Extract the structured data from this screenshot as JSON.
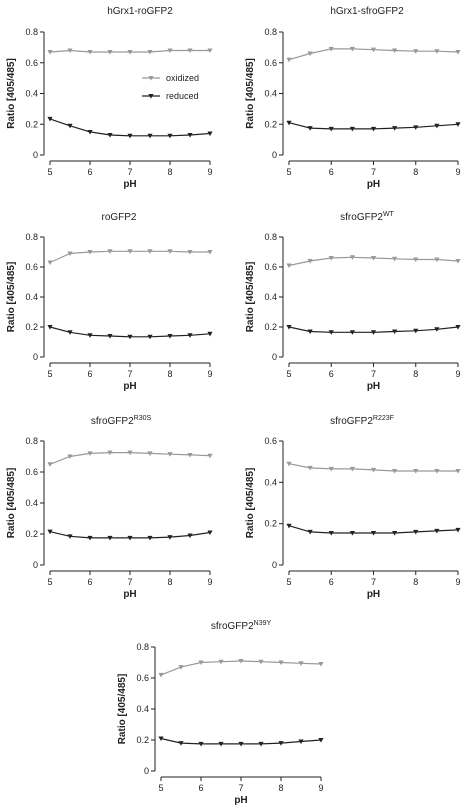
{
  "chart_data": [
    {
      "type": "line",
      "title": "hGrx1-roGFP2",
      "title_sup": "",
      "xlabel": "pH",
      "ylabel": "Ratio [405/485]",
      "xlim": [
        5,
        9
      ],
      "ylim": [
        0,
        0.8
      ],
      "xticks": [
        5,
        6,
        7,
        8,
        9
      ],
      "yticks": [
        0,
        0.2,
        0.4,
        0.6,
        0.8
      ],
      "x": [
        5,
        5.5,
        6,
        6.5,
        7,
        7.5,
        8,
        8.5,
        9
      ],
      "series": [
        {
          "name": "oxidized",
          "color": "#999999",
          "marker": "triangle-down",
          "values": [
            0.67,
            0.68,
            0.67,
            0.67,
            0.67,
            0.67,
            0.68,
            0.68,
            0.68
          ]
        },
        {
          "name": "reduced",
          "color": "#222222",
          "marker": "triangle-down",
          "values": [
            0.235,
            0.19,
            0.15,
            0.13,
            0.125,
            0.125,
            0.125,
            0.13,
            0.14
          ]
        }
      ],
      "legend": {
        "show": true,
        "placement": "center-right"
      }
    },
    {
      "type": "line",
      "title": "hGrx1-sfroGFP2",
      "title_sup": "",
      "xlabel": "pH",
      "ylabel": "Ratio [405/485]",
      "xlim": [
        5,
        9
      ],
      "ylim": [
        0,
        0.8
      ],
      "xticks": [
        5,
        6,
        7,
        8,
        9
      ],
      "yticks": [
        0,
        0.2,
        0.4,
        0.6,
        0.8
      ],
      "x": [
        5,
        5.5,
        6,
        6.5,
        7,
        7.5,
        8,
        8.5,
        9
      ],
      "series": [
        {
          "name": "oxidized",
          "color": "#999999",
          "marker": "triangle-down",
          "values": [
            0.62,
            0.66,
            0.69,
            0.69,
            0.685,
            0.68,
            0.675,
            0.675,
            0.67
          ]
        },
        {
          "name": "reduced",
          "color": "#222222",
          "marker": "triangle-down",
          "values": [
            0.21,
            0.175,
            0.17,
            0.17,
            0.17,
            0.175,
            0.18,
            0.19,
            0.2
          ]
        }
      ],
      "legend": {
        "show": false
      }
    },
    {
      "type": "line",
      "title": "roGFP2",
      "title_sup": "",
      "xlabel": "pH",
      "ylabel": "Ratio [405/485]",
      "xlim": [
        5,
        9
      ],
      "ylim": [
        0,
        0.8
      ],
      "xticks": [
        5,
        6,
        7,
        8,
        9
      ],
      "yticks": [
        0,
        0.2,
        0.4,
        0.6,
        0.8
      ],
      "x": [
        5,
        5.5,
        6,
        6.5,
        7,
        7.5,
        8,
        8.5,
        9
      ],
      "series": [
        {
          "name": "oxidized",
          "color": "#999999",
          "marker": "triangle-down",
          "values": [
            0.63,
            0.69,
            0.7,
            0.705,
            0.705,
            0.705,
            0.705,
            0.7,
            0.7
          ]
        },
        {
          "name": "reduced",
          "color": "#222222",
          "marker": "triangle-down",
          "values": [
            0.2,
            0.165,
            0.145,
            0.14,
            0.135,
            0.135,
            0.14,
            0.145,
            0.155
          ]
        }
      ],
      "legend": {
        "show": false
      }
    },
    {
      "type": "line",
      "title": "sfroGFP2",
      "title_sup": "WT",
      "xlabel": "pH",
      "ylabel": "Ratio [405/485]",
      "xlim": [
        5,
        9
      ],
      "ylim": [
        0,
        0.8
      ],
      "xticks": [
        5,
        6,
        7,
        8,
        9
      ],
      "yticks": [
        0,
        0.2,
        0.4,
        0.6,
        0.8
      ],
      "x": [
        5,
        5.5,
        6,
        6.5,
        7,
        7.5,
        8,
        8.5,
        9
      ],
      "series": [
        {
          "name": "oxidized",
          "color": "#999999",
          "marker": "triangle-down",
          "values": [
            0.61,
            0.64,
            0.66,
            0.665,
            0.66,
            0.655,
            0.65,
            0.65,
            0.64
          ]
        },
        {
          "name": "reduced",
          "color": "#222222",
          "marker": "triangle-down",
          "values": [
            0.2,
            0.17,
            0.165,
            0.165,
            0.165,
            0.17,
            0.175,
            0.185,
            0.2
          ]
        }
      ],
      "legend": {
        "show": false
      }
    },
    {
      "type": "line",
      "title": "sfroGFP2",
      "title_sup": "R30S",
      "xlabel": "pH",
      "ylabel": "Ratio [405/485]",
      "xlim": [
        5,
        9
      ],
      "ylim": [
        0,
        0.8
      ],
      "xticks": [
        5,
        6,
        7,
        8,
        9
      ],
      "yticks": [
        0,
        0.2,
        0.4,
        0.6,
        0.8
      ],
      "x": [
        5,
        5.5,
        6,
        6.5,
        7,
        7.5,
        8,
        8.5,
        9
      ],
      "series": [
        {
          "name": "oxidized",
          "color": "#999999",
          "marker": "triangle-down",
          "values": [
            0.65,
            0.7,
            0.72,
            0.725,
            0.725,
            0.72,
            0.715,
            0.71,
            0.705
          ]
        },
        {
          "name": "reduced",
          "color": "#222222",
          "marker": "triangle-down",
          "values": [
            0.215,
            0.185,
            0.175,
            0.175,
            0.175,
            0.175,
            0.18,
            0.19,
            0.21
          ]
        }
      ],
      "legend": {
        "show": false
      }
    },
    {
      "type": "line",
      "title": "sfroGFP2",
      "title_sup": "R223F",
      "xlabel": "pH",
      "ylabel": "Ratio [405/485]",
      "xlim": [
        5,
        9
      ],
      "ylim": [
        0,
        0.6
      ],
      "xticks": [
        5,
        6,
        7,
        8,
        9
      ],
      "yticks": [
        0,
        0.2,
        0.4,
        0.6
      ],
      "x": [
        5,
        5.5,
        6,
        6.5,
        7,
        7.5,
        8,
        8.5,
        9
      ],
      "series": [
        {
          "name": "oxidized",
          "color": "#999999",
          "marker": "triangle-down",
          "values": [
            0.49,
            0.47,
            0.465,
            0.465,
            0.46,
            0.455,
            0.455,
            0.455,
            0.455
          ]
        },
        {
          "name": "reduced",
          "color": "#222222",
          "marker": "triangle-down",
          "values": [
            0.19,
            0.16,
            0.155,
            0.155,
            0.155,
            0.155,
            0.16,
            0.165,
            0.17
          ]
        }
      ],
      "legend": {
        "show": false
      }
    },
    {
      "type": "line",
      "title": "sfroGFP2",
      "title_sup": "N39Y",
      "xlabel": "pH",
      "ylabel": "Ratio [405/485]",
      "xlim": [
        5,
        9
      ],
      "ylim": [
        0,
        0.8
      ],
      "xticks": [
        5,
        6,
        7,
        8,
        9
      ],
      "yticks": [
        0,
        0.2,
        0.4,
        0.6,
        0.8
      ],
      "x": [
        5,
        5.5,
        6,
        6.5,
        7,
        7.5,
        8,
        8.5,
        9
      ],
      "series": [
        {
          "name": "oxidized",
          "color": "#999999",
          "marker": "triangle-down",
          "values": [
            0.62,
            0.67,
            0.7,
            0.705,
            0.71,
            0.705,
            0.7,
            0.695,
            0.69
          ]
        },
        {
          "name": "reduced",
          "color": "#222222",
          "marker": "triangle-down",
          "values": [
            0.21,
            0.18,
            0.175,
            0.175,
            0.175,
            0.175,
            0.18,
            0.19,
            0.2
          ]
        }
      ],
      "legend": {
        "show": false
      }
    }
  ]
}
